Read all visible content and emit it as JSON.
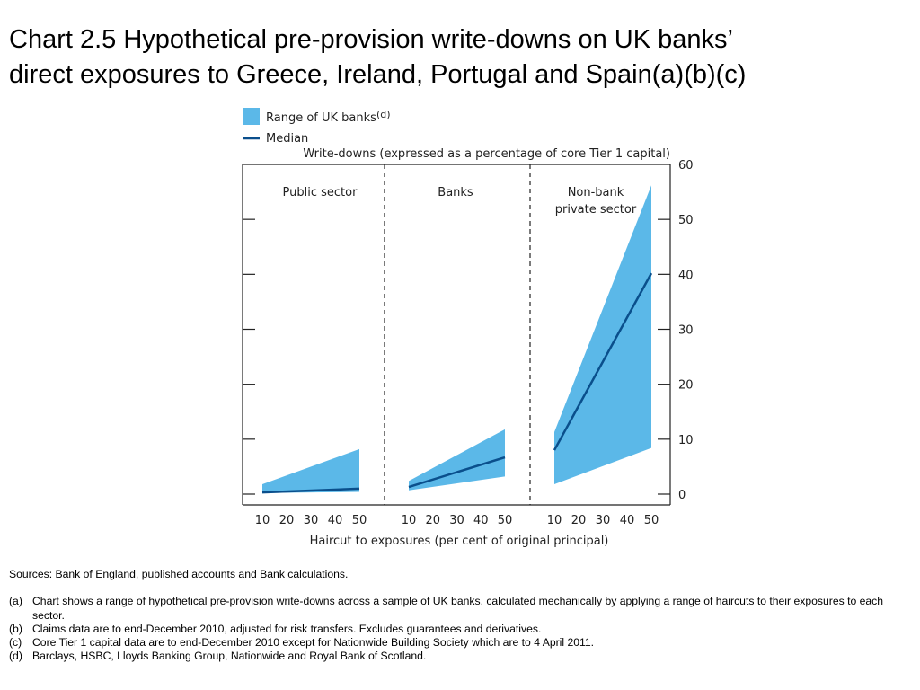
{
  "title_line1": "Chart 2.5  Hypothetical pre-provision write-downs on UK banks’",
  "title_line2": "direct exposures to Greece, Ireland, Portugal and Spain(a)(b)(c)",
  "chart_data": {
    "type": "area",
    "legend": {
      "range_label": "Range of UK banks",
      "range_sup": "(d)",
      "median_label": "Median",
      "placement": "top-left"
    },
    "y_axis_title": "Write-downs (expressed as a percentage of core Tier 1 capital)",
    "x_axis_title": "Haircut to exposures (per cent of original principal)",
    "ylim": [
      0,
      60
    ],
    "y_ticks": [
      "0",
      "10",
      "20",
      "30",
      "40",
      "50",
      "60"
    ],
    "y_tick_values": [
      0,
      10,
      20,
      30,
      40,
      50,
      60
    ],
    "y_axis_side": "right",
    "x_ticks": [
      "10",
      "20",
      "30",
      "40",
      "50"
    ],
    "x_tick_values": [
      10,
      20,
      30,
      40,
      50
    ],
    "colors": {
      "range": "#5bb8e8",
      "median": "#0a4f8c",
      "axis": "#222222"
    },
    "panels": [
      {
        "label_lines": [
          "Public sector"
        ],
        "x": [
          10,
          50
        ],
        "range_low": [
          0.2,
          0.4
        ],
        "range_high": [
          1.8,
          8.2
        ],
        "median": [
          0.3,
          1.0
        ]
      },
      {
        "label_lines": [
          "Banks"
        ],
        "x": [
          10,
          50
        ],
        "range_low": [
          0.7,
          3.2
        ],
        "range_high": [
          2.4,
          11.8
        ],
        "median": [
          1.3,
          6.7
        ]
      },
      {
        "label_lines": [
          "Non-bank",
          "private sector"
        ],
        "x": [
          10,
          50
        ],
        "range_low": [
          1.8,
          8.4
        ],
        "range_high": [
          11.3,
          56.2
        ],
        "median": [
          8.0,
          40.2
        ]
      }
    ]
  },
  "notes": {
    "sources": "Sources:  Bank of England, published accounts and Bank calculations.",
    "footnotes": [
      {
        "marker": "(a)",
        "text": "Chart shows a range of hypothetical pre-provision write-downs across a sample of UK banks, calculated mechanically by applying a range of haircuts to their exposures to each sector."
      },
      {
        "marker": "(b)",
        "text": "Claims data are to end-December 2010, adjusted for risk transfers.  Excludes guarantees and derivatives."
      },
      {
        "marker": "(c)",
        "text": "Core Tier 1 capital data are to end-December 2010 except for Nationwide Building Society which are to 4 April 2011."
      },
      {
        "marker": "(d)",
        "text": "Barclays, HSBC, Lloyds Banking Group, Nationwide and Royal Bank of Scotland."
      }
    ]
  }
}
